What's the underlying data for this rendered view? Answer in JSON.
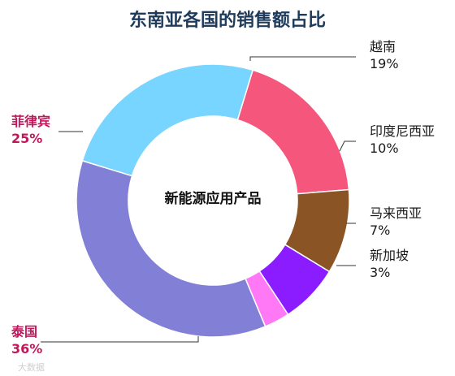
{
  "chart_data": {
    "type": "pie",
    "title": "东南亚各国的销售额占比",
    "center_label": "新能源应用产品",
    "slices": [
      {
        "name": "越南",
        "value": 19,
        "label": "19%",
        "color": "#f4567c"
      },
      {
        "name": "印度尼西亚",
        "value": 10,
        "label": "10%",
        "color": "#8b5425"
      },
      {
        "name": "马来西亚",
        "value": 7,
        "label": "7%",
        "color": "#8a1cff"
      },
      {
        "name": "新加坡",
        "value": 3,
        "label": "3%",
        "color": "#ff78f5"
      },
      {
        "name": "泰国",
        "value": 36,
        "label": "36%",
        "color": "#8280d6"
      },
      {
        "name": "菲律宾",
        "value": 25,
        "label": "25%",
        "color": "#78d5ff"
      }
    ],
    "accent_labels": [
      "泰国",
      "菲律宾"
    ]
  },
  "watermark": "大数据"
}
